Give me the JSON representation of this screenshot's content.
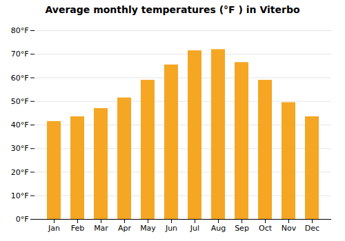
{
  "chart_data": {
    "type": "bar",
    "title": "Average monthly temperatures (°F ) in Viterbo",
    "categories": [
      "Jan",
      "Feb",
      "Mar",
      "Apr",
      "May",
      "Jun",
      "Jul",
      "Aug",
      "Sep",
      "Oct",
      "Nov",
      "Dec"
    ],
    "values": [
      41.5,
      43.5,
      47.0,
      51.5,
      59.0,
      65.5,
      71.5,
      72.0,
      66.5,
      59.0,
      49.5,
      43.5
    ],
    "color": "#F5A623",
    "ylim": [
      0,
      80
    ],
    "yticks": [
      {
        "value": 0,
        "label": "0°F"
      },
      {
        "value": 10,
        "label": "10°F"
      },
      {
        "value": 20,
        "label": "20°F"
      },
      {
        "value": 30,
        "label": "30°F"
      },
      {
        "value": 40,
        "label": "40°F"
      },
      {
        "value": 50,
        "label": "50°F"
      },
      {
        "value": 60,
        "label": "60°F"
      },
      {
        "value": 70,
        "label": "70°F"
      },
      {
        "value": 80,
        "label": "80°F"
      }
    ],
    "grid": true
  }
}
